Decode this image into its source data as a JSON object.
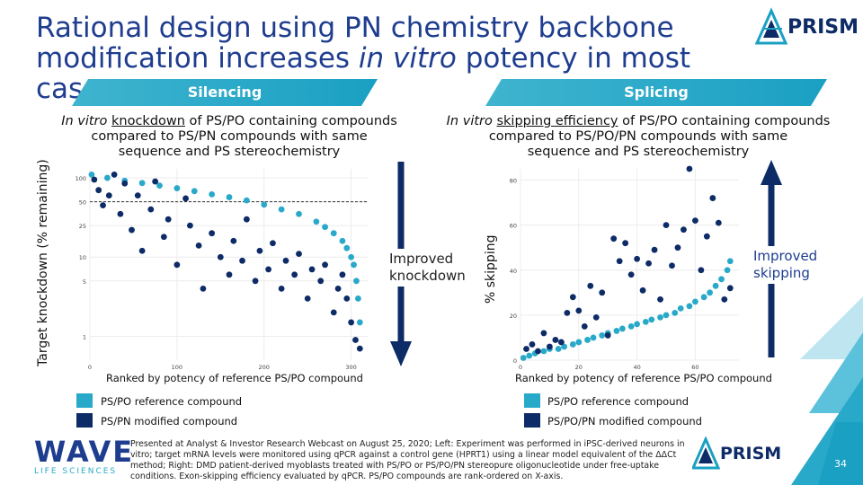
{
  "title_line1": "Rational design using PN chemistry backbone",
  "title_line2_pre": "modification increases ",
  "title_line2_em": "in vitro",
  "title_line2_post": " potency in most cases",
  "brand": "PRISM",
  "left": {
    "banner": "Silencing",
    "subhead_em": "In vitro",
    "subhead_u": "knockdown",
    "subhead_rest1": " of PS/PO containing compounds",
    "subhead_line2": "compared to PS/PN compounds with same",
    "subhead_line3": "sequence and PS stereochemistry",
    "ylabel": "Target knockdown (% remaining)",
    "xlabel": "Ranked by potency of reference PS/PO compound",
    "improved_1": "Improved",
    "improved_2": "knockdown",
    "legend": [
      "PS/PO reference compound",
      "PS/PN modified compound"
    ]
  },
  "right": {
    "banner": "Splicing",
    "subhead_em": "In vitro",
    "subhead_u": "skipping efficiency",
    "subhead_rest1": " of PS/PO containing compounds",
    "subhead_line2": "compared to PS/PO/PN compounds with same",
    "subhead_line3": "sequence and PS stereochemistry",
    "ylabel": "% skipping",
    "xlabel": "Ranked by potency of reference PS/PO compound",
    "improved_1": "Improved",
    "improved_2": "skipping",
    "legend": [
      "PS/PO reference compound",
      "PS/PO/PN modified compound"
    ]
  },
  "footer": "Presented at Analyst & Investor Research Webcast on August 25, 2020; Left: Experiment was performed in iPSC-derived neurons in vitro; target mRNA levels were monitored using qPCR against a control gene (HPRT1) using a linear model equivalent of the ΔΔCt method; Right: DMD patient-derived myoblasts treated with PS/PO or PS/PO/PN stereopure oligonucleotide under free-uptake conditions. Exon-skipping efficiency evaluated by qPCR. PS/PO compounds are rank-ordered on X-axis.",
  "wave_logo": "WAVE",
  "wave_sub": "LIFE SCIENCES",
  "page_number": "34",
  "colors": {
    "teal": "#29a9c9",
    "navy": "#0d2b66",
    "title": "#1e3d8f"
  },
  "chart_data": [
    {
      "type": "scatter",
      "title": "Silencing",
      "xlabel": "Ranked by potency of reference PS/PO compound",
      "ylabel": "Target knockdown (% remaining)",
      "yscale": "log",
      "xlim": [
        0,
        320
      ],
      "ylim": [
        0.5,
        130
      ],
      "xticks": [
        0,
        100,
        200,
        300
      ],
      "yticks": [
        1,
        5,
        10,
        25,
        50,
        100
      ],
      "reference_line": 50,
      "series": [
        {
          "name": "PS/PO reference compound",
          "x": [
            2,
            20,
            40,
            60,
            80,
            100,
            120,
            140,
            160,
            180,
            200,
            220,
            240,
            260,
            270,
            280,
            290,
            295,
            300,
            303,
            306,
            308,
            310
          ],
          "values": [
            110,
            100,
            92,
            86,
            80,
            74,
            68,
            62,
            57,
            52,
            46,
            40,
            35,
            28,
            24,
            20,
            16,
            13,
            10,
            8,
            5,
            3,
            1.5
          ]
        },
        {
          "name": "PS/PN modified compound",
          "x": [
            5,
            10,
            15,
            22,
            28,
            35,
            40,
            48,
            55,
            60,
            70,
            75,
            85,
            90,
            100,
            110,
            115,
            125,
            130,
            140,
            150,
            160,
            165,
            175,
            180,
            190,
            195,
            205,
            210,
            220,
            225,
            235,
            240,
            250,
            255,
            265,
            270,
            280,
            285,
            290,
            295,
            300,
            305,
            310
          ],
          "values": [
            95,
            70,
            45,
            60,
            110,
            35,
            85,
            22,
            60,
            12,
            40,
            90,
            18,
            30,
            8,
            55,
            25,
            14,
            4,
            20,
            10,
            6,
            16,
            9,
            30,
            5,
            12,
            7,
            15,
            4,
            9,
            6,
            11,
            3,
            7,
            5,
            8,
            2,
            4,
            6,
            3,
            1.5,
            0.9,
            0.7
          ]
        }
      ]
    },
    {
      "type": "scatter",
      "title": "Splicing",
      "xlabel": "Ranked by potency of reference PS/PO compound",
      "ylabel": "% skipping",
      "xlim": [
        0,
        75
      ],
      "ylim": [
        0,
        85
      ],
      "xticks": [
        0,
        20,
        40,
        60
      ],
      "yticks": [
        0,
        20,
        40,
        60,
        80
      ],
      "series": [
        {
          "name": "PS/PO reference compound",
          "x": [
            1,
            3,
            5,
            8,
            10,
            13,
            15,
            18,
            20,
            23,
            25,
            28,
            30,
            33,
            35,
            38,
            40,
            43,
            45,
            48,
            50,
            53,
            55,
            58,
            60,
            63,
            65,
            67,
            69,
            71,
            72
          ],
          "values": [
            1,
            2,
            3,
            4,
            5,
            5,
            6,
            7,
            8,
            9,
            10,
            11,
            12,
            13,
            14,
            15,
            16,
            17,
            18,
            19,
            20,
            21,
            23,
            24,
            26,
            28,
            30,
            33,
            36,
            40,
            44
          ]
        },
        {
          "name": "PS/PO/PN modified compound",
          "x": [
            2,
            4,
            6,
            8,
            10,
            12,
            14,
            16,
            18,
            20,
            22,
            24,
            26,
            28,
            30,
            32,
            34,
            36,
            38,
            40,
            42,
            44,
            46,
            48,
            50,
            52,
            54,
            56,
            58,
            60,
            62,
            64,
            66,
            68,
            70,
            72
          ],
          "values": [
            5,
            7,
            4,
            12,
            6,
            9,
            8,
            21,
            28,
            22,
            15,
            33,
            19,
            30,
            11,
            54,
            44,
            52,
            38,
            45,
            31,
            43,
            49,
            27,
            60,
            42,
            50,
            58,
            85,
            62,
            40,
            55,
            72,
            61,
            27,
            32
          ]
        }
      ]
    }
  ]
}
